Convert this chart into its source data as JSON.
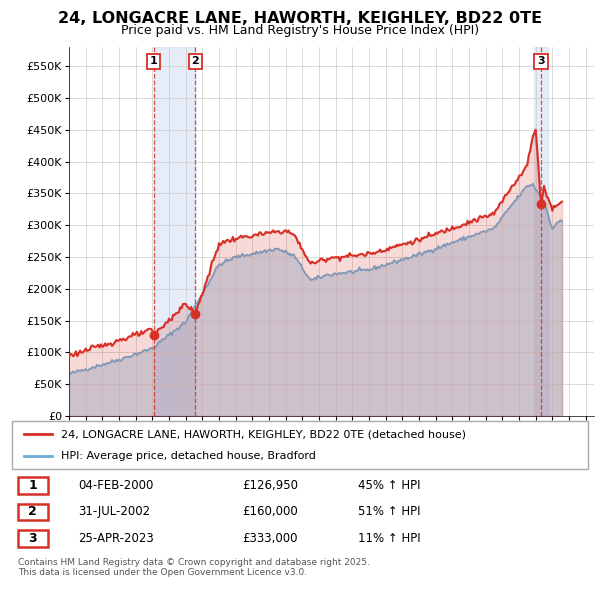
{
  "title": "24, LONGACRE LANE, HAWORTH, KEIGHLEY, BD22 0TE",
  "subtitle": "Price paid vs. HM Land Registry's House Price Index (HPI)",
  "hpi_color": "#6baed6",
  "property_color": "#d73027",
  "background_color": "#ffffff",
  "plot_bg_color": "#ffffff",
  "grid_color": "#cccccc",
  "ylim": [
    0,
    580000
  ],
  "yticks": [
    0,
    50000,
    100000,
    150000,
    200000,
    250000,
    300000,
    350000,
    400000,
    450000,
    500000,
    550000
  ],
  "ytick_labels": [
    "£0",
    "£50K",
    "£100K",
    "£150K",
    "£200K",
    "£250K",
    "£300K",
    "£350K",
    "£400K",
    "£450K",
    "£500K",
    "£550K"
  ],
  "xlim_start": 1995.0,
  "xlim_end": 2026.5,
  "xticks": [
    1995,
    1996,
    1997,
    1998,
    1999,
    2000,
    2001,
    2002,
    2003,
    2004,
    2005,
    2006,
    2007,
    2008,
    2009,
    2010,
    2011,
    2012,
    2013,
    2014,
    2015,
    2016,
    2017,
    2018,
    2019,
    2020,
    2021,
    2022,
    2023,
    2024,
    2025,
    2026
  ],
  "sale_points": [
    {
      "year": 2000.09,
      "price": 126950,
      "label": "1"
    },
    {
      "year": 2002.58,
      "price": 160000,
      "label": "2"
    },
    {
      "year": 2023.32,
      "price": 333000,
      "label": "3"
    }
  ],
  "sale_vlines": [
    {
      "year": 2000.09,
      "label": "1"
    },
    {
      "year": 2002.58,
      "label": "2"
    },
    {
      "year": 2023.32,
      "label": "3"
    }
  ],
  "vspan1_x0": 2000.09,
  "vspan1_x1": 2002.58,
  "vspan2_x0": 2022.9,
  "vspan2_x1": 2023.75,
  "legend_entries": [
    {
      "label": "24, LONGACRE LANE, HAWORTH, KEIGHLEY, BD22 0TE (detached house)",
      "color": "#d73027"
    },
    {
      "label": "HPI: Average price, detached house, Bradford",
      "color": "#6baed6"
    }
  ],
  "table_rows": [
    {
      "num": "1",
      "date": "04-FEB-2000",
      "price": "£126,950",
      "change": "45% ↑ HPI"
    },
    {
      "num": "2",
      "date": "31-JUL-2002",
      "price": "£160,000",
      "change": "51% ↑ HPI"
    },
    {
      "num": "3",
      "date": "25-APR-2023",
      "price": "£333,000",
      "change": "11% ↑ HPI"
    }
  ],
  "footer": "Contains HM Land Registry data © Crown copyright and database right 2025.\nThis data is licensed under the Open Government Licence v3.0."
}
